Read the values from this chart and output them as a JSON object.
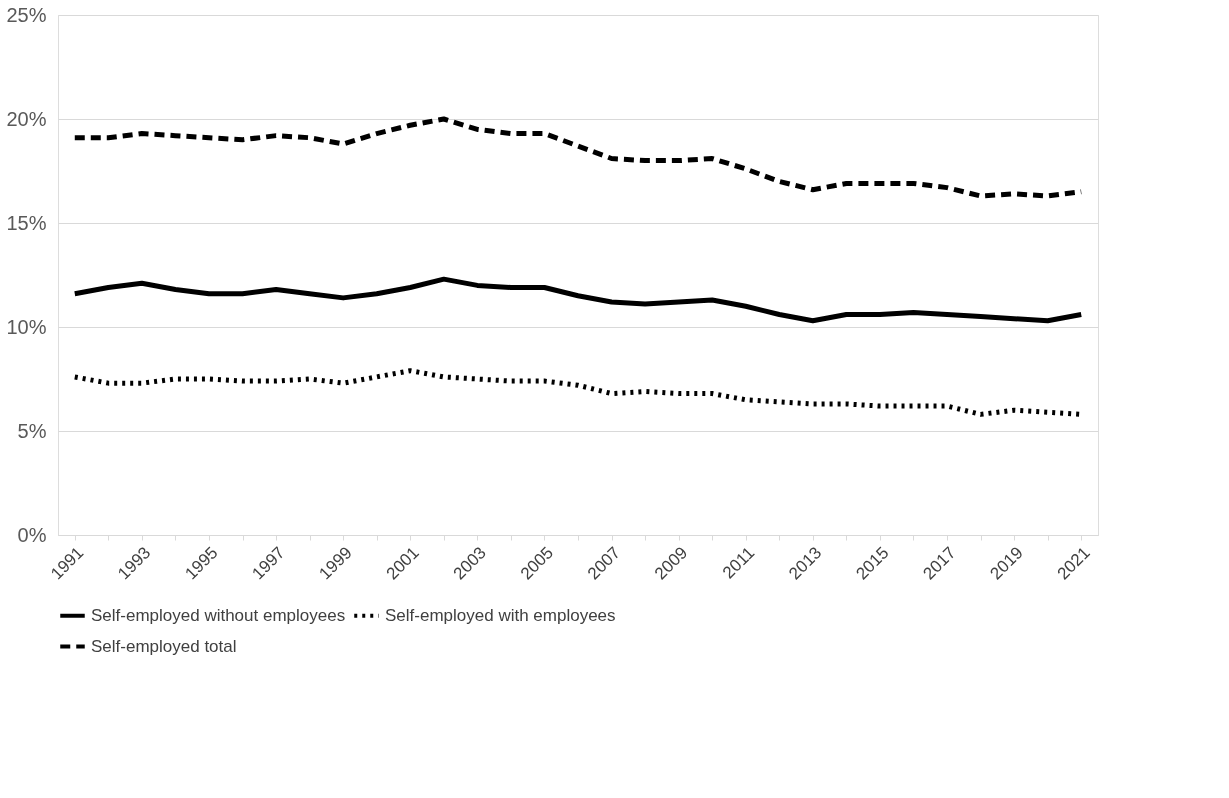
{
  "chart_data": {
    "type": "line",
    "categories": [
      "1991",
      null,
      "1993",
      null,
      "1995",
      null,
      "1997",
      null,
      "1999",
      null,
      "2001",
      null,
      "2003",
      null,
      "2005",
      null,
      "2007",
      null,
      "2009",
      null,
      "2011",
      null,
      "2013",
      null,
      "2015",
      null,
      "2017",
      null,
      "2019",
      null,
      "2021"
    ],
    "series": [
      {
        "name": "Self-employed without employees",
        "color": "#000000",
        "line_style": "solid",
        "values": [
          11.6,
          11.9,
          12.1,
          11.8,
          11.6,
          11.6,
          11.8,
          11.6,
          11.4,
          11.6,
          11.9,
          12.3,
          12.0,
          11.9,
          11.9,
          11.5,
          11.2,
          11.1,
          11.2,
          11.3,
          11.0,
          10.6,
          10.3,
          10.6,
          10.6,
          10.7,
          10.6,
          10.5,
          10.4,
          10.3,
          10.6
        ]
      },
      {
        "name": "Self-employed with employees",
        "color": "#000000",
        "line_style": "dotted",
        "values": [
          7.6,
          7.3,
          7.3,
          7.5,
          7.5,
          7.4,
          7.4,
          7.5,
          7.3,
          7.6,
          7.9,
          7.6,
          7.5,
          7.4,
          7.4,
          7.2,
          6.8,
          6.9,
          6.8,
          6.8,
          6.5,
          6.4,
          6.3,
          6.3,
          6.2,
          6.2,
          6.2,
          5.8,
          6.0,
          5.9,
          5.8
        ]
      },
      {
        "name": "Self-employed total",
        "color": "#000000",
        "line_style": "dashed",
        "values": [
          19.1,
          19.1,
          19.3,
          19.2,
          19.1,
          19.0,
          19.2,
          19.1,
          18.8,
          19.3,
          19.7,
          20.0,
          19.5,
          19.3,
          19.3,
          18.7,
          18.1,
          18.0,
          18.0,
          18.1,
          17.6,
          17.0,
          16.6,
          16.9,
          16.9,
          16.9,
          16.7,
          16.3,
          16.4,
          16.3,
          16.5
        ]
      }
    ],
    "ylim": [
      0,
      25
    ],
    "yticks": [
      {
        "value": 0,
        "label": "0%"
      },
      {
        "value": 5,
        "label": "5%"
      },
      {
        "value": 10,
        "label": "10%"
      },
      {
        "value": 15,
        "label": "15%"
      },
      {
        "value": 20,
        "label": "20%"
      },
      {
        "value": 25,
        "label": "25%"
      }
    ],
    "grid": "y",
    "legend": "bottom"
  }
}
